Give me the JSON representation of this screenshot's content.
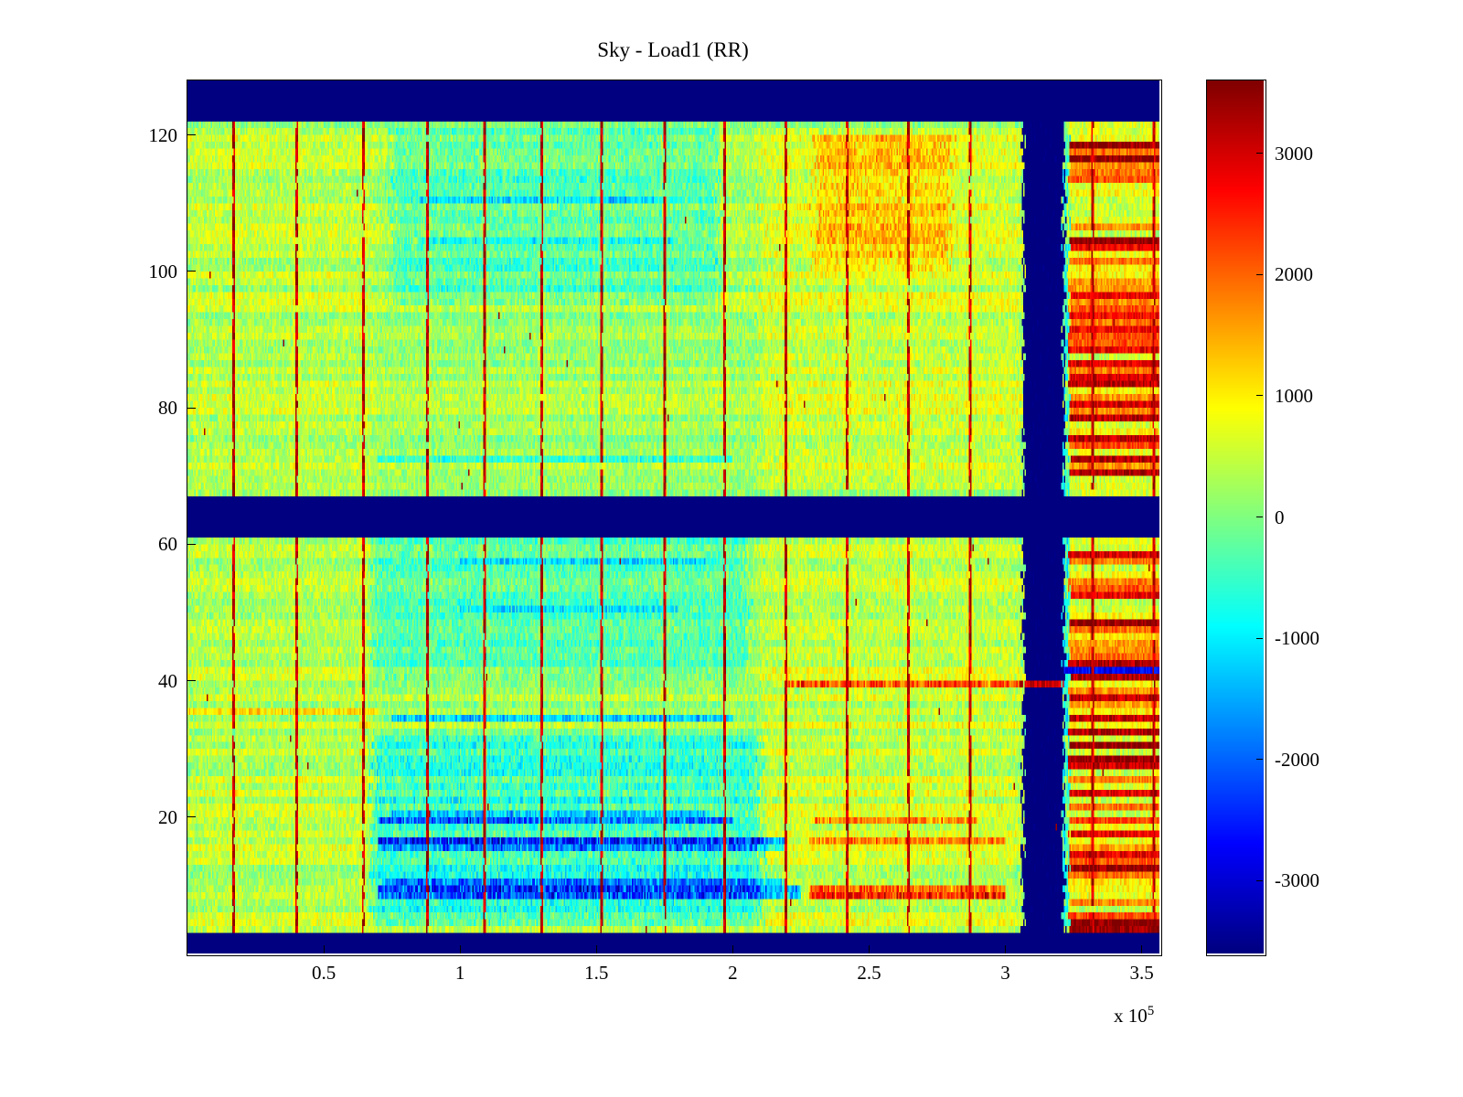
{
  "chart_data": {
    "type": "heatmap",
    "title": "Sky - Load1 (RR)",
    "xlabel": "",
    "ylabel": "",
    "x_unit": "1e5",
    "x_offset": {
      "prefix": "x 10",
      "exponent": "5"
    },
    "xlim": [
      0,
      3.565
    ],
    "ylim": [
      0,
      128
    ],
    "x_ticks": [
      0.5,
      1,
      1.5,
      2,
      2.5,
      3,
      3.5
    ],
    "x_tick_labels": [
      "0.5",
      "1",
      "1.5",
      "2",
      "2.5",
      "3",
      "3.5"
    ],
    "y_ticks": [
      20,
      40,
      60,
      80,
      100,
      120
    ],
    "colormap": "jet",
    "clim": [
      -3600,
      3600
    ],
    "colorbar_ticks": [
      3000,
      2000,
      1000,
      0,
      -1000,
      -2000,
      -3000
    ],
    "grid": {
      "cols": 713,
      "rows": 128
    },
    "seed": 1337,
    "base": {
      "mean": 250,
      "noise": 450,
      "row_streak": 300
    },
    "bands": {
      "top_y": 121.5,
      "bottom_y": 3.1,
      "mid_y": [
        61.4,
        67.2
      ],
      "vertical_navy_x": [
        3.065,
        3.215
      ],
      "gap_rows": [
        39
      ],
      "band_value": -4200
    },
    "vertical_stripes": {
      "x": [
        0.17,
        0.4,
        0.645,
        0.88,
        1.09,
        1.3,
        1.52,
        1.75,
        1.97,
        2.195,
        2.42,
        2.645,
        2.87,
        3.32,
        3.545
      ],
      "value": 2600,
      "half_width": 0.007
    },
    "right_red_region": {
      "x": [
        3.235,
        3.565
      ],
      "value": 1200
    },
    "regions": [
      {
        "x": [
          0.68,
          2.1
        ],
        "y": [
          4,
          32
        ],
        "dv": -750
      },
      {
        "x": [
          0.68,
          2.05
        ],
        "y": [
          40,
          61
        ],
        "dv": -480
      },
      {
        "x": [
          0.75,
          1.95
        ],
        "y": [
          95,
          121
        ],
        "dv": -520
      },
      {
        "x": [
          2.1,
          3.06
        ],
        "y": [
          4,
          61
        ],
        "dv": 260
      },
      {
        "x": [
          2.1,
          3.06
        ],
        "y": [
          68,
          121
        ],
        "dv": 300
      },
      {
        "x": [
          2.3,
          2.8
        ],
        "y": [
          100,
          120
        ],
        "dv": 650
      },
      {
        "x": [
          0.0,
          0.68
        ],
        "y": [
          4,
          121
        ],
        "dv": 160
      },
      {
        "x": [
          3.205,
          3.24
        ],
        "y": [
          4,
          121
        ],
        "dv": -900
      }
    ],
    "horizontal_stripes": [
      {
        "y": 8,
        "x": [
          0.7,
          2.25
        ],
        "dv": -1700
      },
      {
        "y": 9,
        "x": [
          0.7,
          2.25
        ],
        "dv": -1800
      },
      {
        "y": 10,
        "x": [
          0.72,
          2.2
        ],
        "dv": -1200
      },
      {
        "y": 15,
        "x": [
          0.7,
          2.2
        ],
        "dv": -1500
      },
      {
        "y": 16,
        "x": [
          0.7,
          2.2
        ],
        "dv": -1900
      },
      {
        "y": 19,
        "x": [
          0.7,
          2.0
        ],
        "dv": -1500
      },
      {
        "y": 20,
        "x": [
          0.75,
          1.9
        ],
        "dv": -900
      },
      {
        "y": 34,
        "x": [
          0.75,
          2.0
        ],
        "dv": -1200
      },
      {
        "y": 35,
        "x": [
          0.0,
          0.7
        ],
        "dv": 650
      },
      {
        "y": 50,
        "x": [
          1.0,
          1.8
        ],
        "dv": -700
      },
      {
        "y": 57,
        "x": [
          1.0,
          1.9
        ],
        "dv": -650
      },
      {
        "y": 72,
        "x": [
          0.7,
          2.0
        ],
        "dv": -700
      },
      {
        "y": 104,
        "x": [
          0.85,
          1.8
        ],
        "dv": -650
      },
      {
        "y": 110,
        "x": [
          0.85,
          1.75
        ],
        "dv": -600
      },
      {
        "y": 8,
        "x": [
          2.28,
          3.0
        ],
        "dv": 1900
      },
      {
        "y": 9,
        "x": [
          2.28,
          3.0
        ],
        "dv": 1500
      },
      {
        "y": 16,
        "x": [
          2.28,
          3.0
        ],
        "dv": 1300
      },
      {
        "y": 19,
        "x": [
          2.3,
          2.9
        ],
        "dv": 1200
      },
      {
        "y": 39,
        "x": [
          2.2,
          3.06
        ],
        "dv": 1800
      },
      {
        "y": 41,
        "x": [
          3.2,
          3.565
        ],
        "v": -2800,
        "set": true
      }
    ],
    "speckle": {
      "prob": 0.0005,
      "value": 3400
    }
  }
}
